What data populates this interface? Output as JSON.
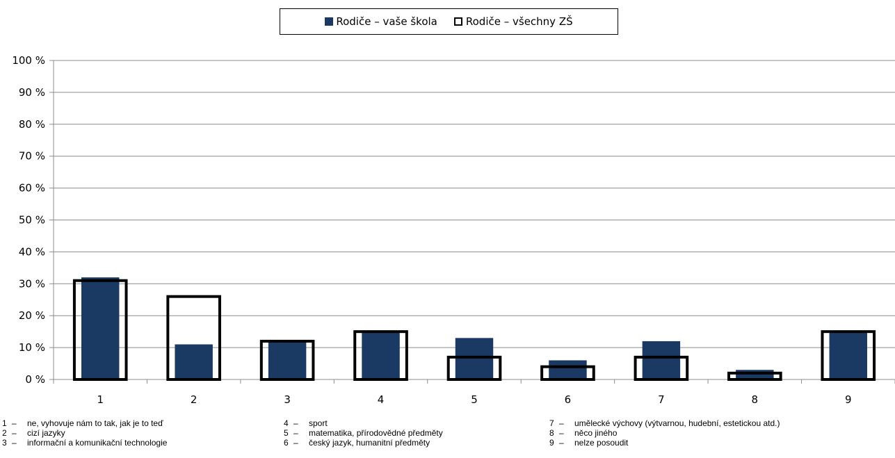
{
  "chart_data": {
    "type": "bar",
    "categories": [
      "1",
      "2",
      "3",
      "4",
      "5",
      "6",
      "7",
      "8",
      "9"
    ],
    "series": [
      {
        "name": "Rodiče – vaše škola",
        "values": [
          32,
          11,
          12,
          15,
          13,
          6,
          12,
          3,
          15
        ],
        "color": "#1b3a63",
        "style": "filled"
      },
      {
        "name": "Rodiče – všechny ZŠ",
        "values": [
          31,
          26,
          12,
          15,
          7,
          4,
          7,
          2,
          15
        ],
        "color": "#000000",
        "style": "outline"
      }
    ],
    "yticks": [
      "0 %",
      "10 %",
      "20 %",
      "30 %",
      "40 %",
      "50 %",
      "60 %",
      "70 %",
      "80 %",
      "90 %",
      "100 %"
    ],
    "ylim": [
      0,
      100
    ],
    "grid": true,
    "legend_position": "top"
  },
  "legend": {
    "item1": "Rodiče – vaše škola",
    "item2": "Rodiče – všechny ZŠ"
  },
  "notes": {
    "col1": [
      {
        "num": "1",
        "text": "ne, vyhovuje nám to tak, jak je to teď"
      },
      {
        "num": "2",
        "text": "cizí jazyky"
      },
      {
        "num": "3",
        "text": "informační a komunikační technologie"
      }
    ],
    "col2": [
      {
        "num": "4",
        "text": "sport"
      },
      {
        "num": "5",
        "text": "matematika, přírodovědné předměty"
      },
      {
        "num": "6",
        "text": "český jazyk, humanitní předměty"
      }
    ],
    "col3": [
      {
        "num": "7",
        "text": "umělecké výchovy (výtvarnou, hudební, estetickou atd.)"
      },
      {
        "num": "8",
        "text": "něco jiného"
      },
      {
        "num": "9",
        "text": "nelze posoudit"
      }
    ],
    "dash": "–"
  }
}
